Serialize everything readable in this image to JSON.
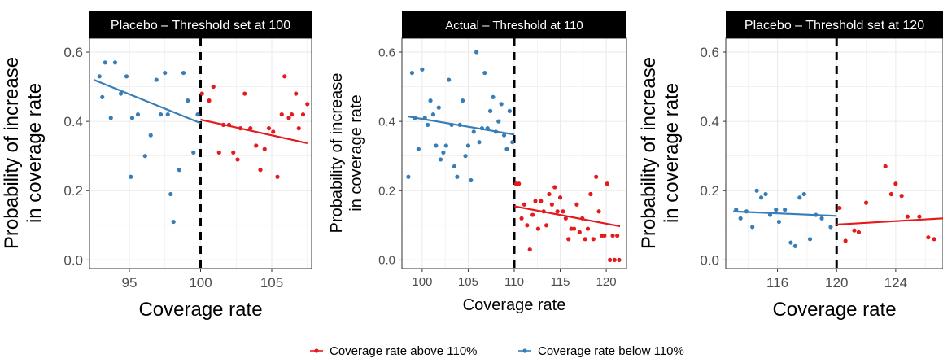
{
  "colors": {
    "above": "#e41a1c",
    "below": "#377eb8",
    "threshold_line": "#000000",
    "strip_bg": "#000000",
    "grid": "#ebebeb"
  },
  "legend": {
    "placement": "bottom",
    "items": [
      {
        "label": "Coverage rate above 110%",
        "color": "#e41a1c"
      },
      {
        "label": "Coverage rate below 110%",
        "color": "#377eb8"
      }
    ]
  },
  "chart_data": [
    {
      "type": "scatter",
      "title": "Placebo – Threshold set at 100",
      "xlabel": "Coverage rate",
      "ylabel": "Probability of increase in coverage rate",
      "xlim": [
        92.2,
        107.8
      ],
      "ylim": [
        -0.025,
        0.64
      ],
      "xticks": [
        95,
        100,
        105
      ],
      "yticks": [
        0.0,
        0.2,
        0.4,
        0.6
      ],
      "ytick_labels": [
        "0.0",
        "0.2",
        "0.4",
        "0.6"
      ],
      "threshold": 100,
      "grid": true,
      "series": [
        {
          "key": "below",
          "color": "#377eb8",
          "points": [
            [
              92.9,
              0.53
            ],
            [
              93.3,
              0.57
            ],
            [
              93.1,
              0.47
            ],
            [
              93.7,
              0.41
            ],
            [
              94.0,
              0.57
            ],
            [
              94.4,
              0.48
            ],
            [
              94.8,
              0.53
            ],
            [
              95.1,
              0.24
            ],
            [
              95.2,
              0.41
            ],
            [
              95.6,
              0.42
            ],
            [
              96.1,
              0.3
            ],
            [
              96.5,
              0.36
            ],
            [
              96.9,
              0.52
            ],
            [
              97.2,
              0.42
            ],
            [
              97.5,
              0.54
            ],
            [
              97.7,
              0.42
            ],
            [
              97.9,
              0.19
            ],
            [
              98.1,
              0.11
            ],
            [
              98.5,
              0.26
            ],
            [
              98.8,
              0.54
            ],
            [
              99.1,
              0.46
            ],
            [
              99.5,
              0.31
            ],
            [
              99.8,
              0.42
            ]
          ],
          "fit": [
            [
              92.5,
              0.52
            ],
            [
              100,
              0.395
            ]
          ]
        },
        {
          "key": "above",
          "color": "#e41a1c",
          "points": [
            [
              100.1,
              0.48
            ],
            [
              100.6,
              0.46
            ],
            [
              100.9,
              0.5
            ],
            [
              101.3,
              0.31
            ],
            [
              101.6,
              0.39
            ],
            [
              102.0,
              0.39
            ],
            [
              102.3,
              0.31
            ],
            [
              102.6,
              0.29
            ],
            [
              102.8,
              0.38
            ],
            [
              103.1,
              0.48
            ],
            [
              103.5,
              0.38
            ],
            [
              103.9,
              0.33
            ],
            [
              104.2,
              0.26
            ],
            [
              104.5,
              0.32
            ],
            [
              104.8,
              0.38
            ],
            [
              105.1,
              0.37
            ],
            [
              105.4,
              0.24
            ],
            [
              105.7,
              0.42
            ],
            [
              105.9,
              0.53
            ],
            [
              106.2,
              0.41
            ],
            [
              106.4,
              0.42
            ],
            [
              106.7,
              0.48
            ],
            [
              106.9,
              0.38
            ],
            [
              107.2,
              0.42
            ],
            [
              107.5,
              0.45
            ]
          ],
          "fit": [
            [
              100,
              0.405
            ],
            [
              107.5,
              0.337
            ]
          ]
        }
      ]
    },
    {
      "type": "scatter",
      "title": "Actual – Threshold at 110",
      "xlabel": "Coverage rate",
      "ylabel": "Probability of increase in coverage rate",
      "xlim": [
        97.8,
        122.2
      ],
      "ylim": [
        -0.025,
        0.64
      ],
      "xticks": [
        100,
        105,
        110,
        115,
        120
      ],
      "yticks": [
        0.0,
        0.2,
        0.4,
        0.6
      ],
      "ytick_labels": [
        "0.0",
        "0.2",
        "0.4",
        "0.6"
      ],
      "threshold": 110,
      "grid": true,
      "series": [
        {
          "key": "below",
          "color": "#377eb8",
          "points": [
            [
              98.5,
              0.24
            ],
            [
              98.9,
              0.54
            ],
            [
              99.2,
              0.41
            ],
            [
              99.6,
              0.32
            ],
            [
              100.0,
              0.55
            ],
            [
              100.3,
              0.41
            ],
            [
              100.6,
              0.39
            ],
            [
              100.9,
              0.46
            ],
            [
              101.2,
              0.42
            ],
            [
              101.5,
              0.33
            ],
            [
              101.8,
              0.44
            ],
            [
              102.0,
              0.29
            ],
            [
              102.3,
              0.31
            ],
            [
              102.6,
              0.33
            ],
            [
              102.9,
              0.52
            ],
            [
              103.2,
              0.39
            ],
            [
              103.5,
              0.27
            ],
            [
              103.8,
              0.24
            ],
            [
              104.1,
              0.39
            ],
            [
              104.4,
              0.46
            ],
            [
              104.7,
              0.3
            ],
            [
              105.0,
              0.33
            ],
            [
              105.3,
              0.23
            ],
            [
              105.6,
              0.37
            ],
            [
              105.9,
              0.6
            ],
            [
              106.2,
              0.34
            ],
            [
              106.5,
              0.38
            ],
            [
              106.8,
              0.54
            ],
            [
              107.1,
              0.38
            ],
            [
              107.4,
              0.43
            ],
            [
              107.7,
              0.47
            ],
            [
              108.0,
              0.37
            ],
            [
              108.3,
              0.4
            ],
            [
              108.6,
              0.45
            ],
            [
              108.9,
              0.36
            ],
            [
              109.2,
              0.32
            ],
            [
              109.5,
              0.43
            ],
            [
              109.8,
              0.34
            ]
          ],
          "fit": [
            [
              98.5,
              0.414
            ],
            [
              110,
              0.362
            ]
          ]
        },
        {
          "key": "above",
          "color": "#e41a1c",
          "points": [
            [
              110.2,
              0.22
            ],
            [
              110.5,
              0.22
            ],
            [
              110.8,
              0.12
            ],
            [
              111.1,
              0.16
            ],
            [
              111.4,
              0.1
            ],
            [
              111.7,
              0.03
            ],
            [
              112.0,
              0.13
            ],
            [
              112.3,
              0.17
            ],
            [
              112.6,
              0.09
            ],
            [
              112.9,
              0.17
            ],
            [
              113.2,
              0.14
            ],
            [
              113.5,
              0.1
            ],
            [
              113.8,
              0.19
            ],
            [
              114.1,
              0.16
            ],
            [
              114.4,
              0.21
            ],
            [
              114.7,
              0.14
            ],
            [
              115.0,
              0.18
            ],
            [
              115.3,
              0.14
            ],
            [
              115.6,
              0.12
            ],
            [
              115.9,
              0.06
            ],
            [
              116.2,
              0.09
            ],
            [
              116.5,
              0.09
            ],
            [
              116.8,
              0.16
            ],
            [
              117.1,
              0.08
            ],
            [
              117.4,
              0.12
            ],
            [
              117.7,
              0.06
            ],
            [
              118.0,
              0.09
            ],
            [
              118.3,
              0.19
            ],
            [
              118.6,
              0.06
            ],
            [
              118.9,
              0.24
            ],
            [
              119.2,
              0.14
            ],
            [
              119.5,
              0.07
            ],
            [
              119.8,
              0.07
            ],
            [
              120.1,
              0.22
            ],
            [
              120.4,
              0.0
            ],
            [
              120.7,
              0.07
            ],
            [
              120.9,
              0.0
            ],
            [
              121.2,
              0.07
            ],
            [
              121.4,
              0.0
            ]
          ],
          "fit": [
            [
              110,
              0.155
            ],
            [
              121.5,
              0.097
            ]
          ]
        }
      ]
    },
    {
      "type": "scatter",
      "title": "Placebo – Threshold set at 120",
      "xlabel": "Coverage rate",
      "ylabel": "Probability of increase in coverage rate",
      "xlim": [
        112.5,
        127.2
      ],
      "ylim": [
        -0.025,
        0.64
      ],
      "xticks": [
        116,
        120,
        124
      ],
      "yticks": [
        0.0,
        0.2,
        0.4,
        0.6
      ],
      "ytick_labels": [
        "0.0",
        "0.2",
        "0.4",
        "0.6"
      ],
      "threshold": 120,
      "grid": true,
      "series": [
        {
          "key": "below",
          "color": "#377eb8",
          "points": [
            [
              113.2,
              0.145
            ],
            [
              113.5,
              0.12
            ],
            [
              113.9,
              0.14
            ],
            [
              114.3,
              0.095
            ],
            [
              114.6,
              0.2
            ],
            [
              114.9,
              0.18
            ],
            [
              115.2,
              0.19
            ],
            [
              115.5,
              0.13
            ],
            [
              115.9,
              0.145
            ],
            [
              116.1,
              0.11
            ],
            [
              116.5,
              0.145
            ],
            [
              116.9,
              0.05
            ],
            [
              117.2,
              0.04
            ],
            [
              117.5,
              0.18
            ],
            [
              117.8,
              0.19
            ],
            [
              118.2,
              0.06
            ],
            [
              118.6,
              0.13
            ],
            [
              119.0,
              0.12
            ],
            [
              119.6,
              0.095
            ]
          ],
          "fit": [
            [
              113,
              0.14
            ],
            [
              120,
              0.127
            ]
          ]
        },
        {
          "key": "above",
          "color": "#e41a1c",
          "points": [
            [
              120.2,
              0.15
            ],
            [
              120.6,
              0.055
            ],
            [
              121.2,
              0.085
            ],
            [
              121.5,
              0.08
            ],
            [
              122.0,
              0.165
            ],
            [
              123.3,
              0.27
            ],
            [
              123.7,
              0.19
            ],
            [
              124.0,
              0.22
            ],
            [
              124.4,
              0.185
            ],
            [
              124.8,
              0.125
            ],
            [
              125.6,
              0.125
            ],
            [
              126.2,
              0.065
            ],
            [
              126.6,
              0.06
            ]
          ],
          "fit": [
            [
              120,
              0.102
            ],
            [
              127.2,
              0.12
            ]
          ]
        }
      ]
    }
  ]
}
